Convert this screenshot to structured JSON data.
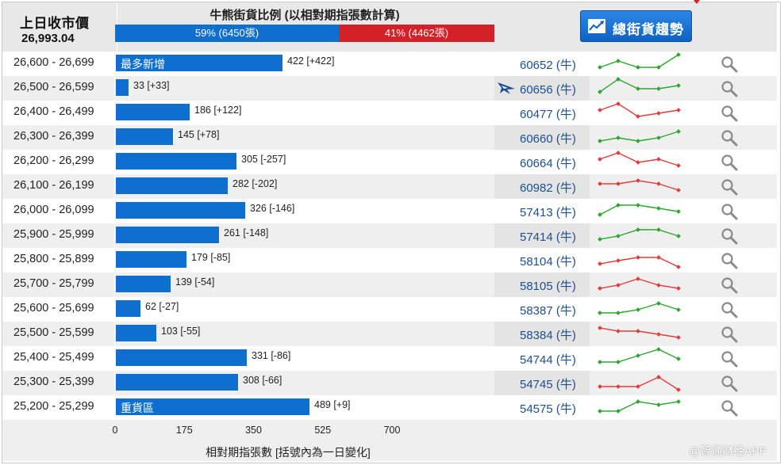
{
  "header": {
    "prev_close_label": "上日收市價",
    "prev_close_value": "26,993.04",
    "ratio_title": "牛熊街貨比例 (以相對期指張數計算)",
    "bull_label": "59% (6450張)",
    "bear_label": "41% (4462張)",
    "bull_share": 0.59,
    "button_label": "總街貨趨勢"
  },
  "colors": {
    "bar": "#0f6fcf",
    "bull": "#0f6fcf",
    "bear": "#d42127",
    "spark_up": "#2ea52e",
    "spark_down": "#e23b3b",
    "link": "#1f4f8f"
  },
  "chart_data": {
    "type": "bar",
    "orientation": "horizontal",
    "xlabel": "相對期指張數 [括號內為一日變化]",
    "xlim": [
      0,
      700
    ],
    "xticks": [
      "0",
      "175",
      "350",
      "525",
      "700"
    ],
    "categories": [
      "26,600 - 26,699",
      "26,500 - 26,599",
      "26,400 - 26,499",
      "26,300 - 26,399",
      "26,200 - 26,299",
      "26,100 - 26,199",
      "26,000 - 26,099",
      "25,900 - 25,999",
      "25,800 - 25,899",
      "25,700 - 25,799",
      "25,600 - 25,699",
      "25,500 - 25,599",
      "25,400 - 25,499",
      "25,300 - 25,399",
      "25,200 - 25,299"
    ],
    "values": [
      422,
      33,
      186,
      145,
      305,
      282,
      326,
      261,
      179,
      139,
      62,
      103,
      331,
      308,
      489
    ],
    "changes": [
      "[+422]",
      "[+33]",
      "[+122]",
      "[+78]",
      "[-257]",
      "[-202]",
      "[-146]",
      "[-148]",
      "[-85]",
      "[-54]",
      "[-27]",
      "[-55]",
      "[-86]",
      "[-66]",
      "[+9]"
    ],
    "annotations": {
      "0": "最多新增",
      "14": "重貨區"
    }
  },
  "rows": [
    {
      "code": "60652 (牛)",
      "flag": false,
      "trend": "up",
      "spark": [
        1,
        3,
        1,
        1,
        5
      ]
    },
    {
      "code": "60656 (牛)",
      "flag": true,
      "trend": "up",
      "spark": [
        1,
        5,
        2,
        2,
        3
      ]
    },
    {
      "code": "60477 (牛)",
      "flag": false,
      "trend": "down",
      "spark": [
        3,
        5,
        1,
        2,
        3
      ]
    },
    {
      "code": "60660 (牛)",
      "flag": false,
      "trend": "up",
      "spark": [
        1,
        2,
        1,
        2,
        4
      ]
    },
    {
      "code": "60664 (牛)",
      "flag": false,
      "trend": "down",
      "spark": [
        3,
        5,
        2,
        3,
        1
      ]
    },
    {
      "code": "60982 (牛)",
      "flag": false,
      "trend": "down",
      "spark": [
        3,
        3,
        4,
        3,
        1
      ]
    },
    {
      "code": "57413 (牛)",
      "flag": false,
      "trend": "up",
      "spark": [
        1,
        4,
        4,
        3,
        2
      ]
    },
    {
      "code": "57414 (牛)",
      "flag": false,
      "trend": "up",
      "spark": [
        1,
        2,
        4,
        4,
        2
      ]
    },
    {
      "code": "58104 (牛)",
      "flag": false,
      "trend": "down",
      "spark": [
        1,
        2,
        3,
        3,
        0
      ]
    },
    {
      "code": "58105 (牛)",
      "flag": false,
      "trend": "down",
      "spark": [
        1,
        2,
        4,
        2,
        1
      ]
    },
    {
      "code": "58387 (牛)",
      "flag": false,
      "trend": "up",
      "spark": [
        1,
        1,
        2,
        4,
        2
      ]
    },
    {
      "code": "58384 (牛)",
      "flag": false,
      "trend": "down",
      "spark": [
        4,
        3,
        3,
        2,
        1
      ]
    },
    {
      "code": "54744 (牛)",
      "flag": false,
      "trend": "up",
      "spark": [
        1,
        1,
        3,
        5,
        2
      ]
    },
    {
      "code": "54745 (牛)",
      "flag": false,
      "trend": "down",
      "spark": [
        1,
        1,
        1,
        4,
        0
      ]
    },
    {
      "code": "54575 (牛)",
      "flag": false,
      "trend": "up",
      "spark": [
        1,
        1,
        4,
        3,
        4
      ]
    }
  ],
  "watermark": "@智通财经APP"
}
